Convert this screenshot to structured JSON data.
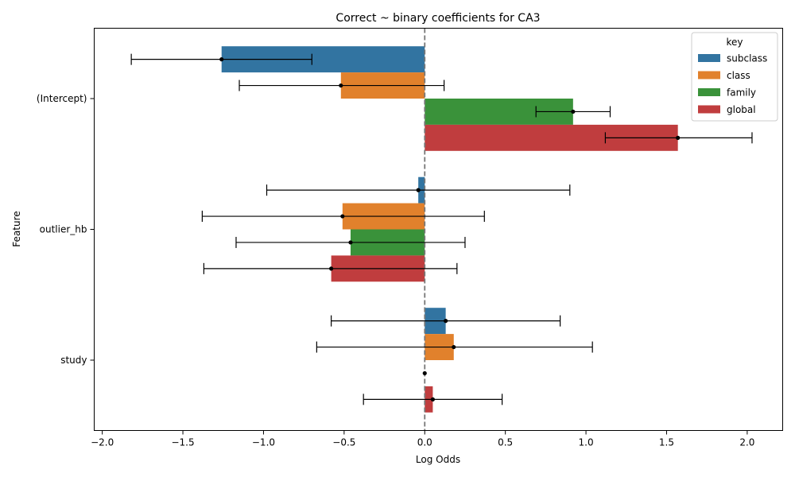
{
  "chart_data": {
    "type": "bar",
    "orientation": "horizontal",
    "title": "Correct ~ binary coefficients for CA3",
    "xlabel": "Log Odds",
    "ylabel": "Feature",
    "xlim": [
      -2.05,
      2.22
    ],
    "xticks": [
      -2.0,
      -1.5,
      -1.0,
      -0.5,
      0.0,
      0.5,
      1.0,
      1.5,
      2.0
    ],
    "xtick_labels": [
      "−2.0",
      "−1.5",
      "−1.0",
      "−0.5",
      "0.0",
      "0.5",
      "1.0",
      "1.5",
      "2.0"
    ],
    "reference_line": 0,
    "grid": false,
    "legend": {
      "title": "key",
      "placement": "top-right"
    },
    "categories": [
      "(Intercept)",
      "outlier_hb",
      "study"
    ],
    "series": [
      {
        "name": "subclass",
        "color": "#3274a1",
        "values": [
          -1.26,
          -0.04,
          0.13
        ],
        "ci_low": [
          -1.82,
          -0.98,
          -0.58
        ],
        "ci_high": [
          -0.7,
          0.9,
          0.84
        ]
      },
      {
        "name": "class",
        "color": "#e1812c",
        "values": [
          -0.52,
          -0.51,
          0.18
        ],
        "ci_low": [
          -1.15,
          -1.38,
          -0.67
        ],
        "ci_high": [
          0.12,
          0.37,
          1.04
        ]
      },
      {
        "name": "family",
        "color": "#3a923a",
        "values": [
          0.92,
          -0.46,
          0.0
        ],
        "ci_low": [
          0.69,
          -1.17,
          0.0
        ],
        "ci_high": [
          1.15,
          0.25,
          0.0
        ]
      },
      {
        "name": "global",
        "color": "#c03d3e",
        "values": [
          1.57,
          -0.58,
          0.05
        ],
        "ci_low": [
          1.12,
          -1.37,
          -0.38
        ],
        "ci_high": [
          2.03,
          0.2,
          0.48
        ]
      }
    ]
  }
}
